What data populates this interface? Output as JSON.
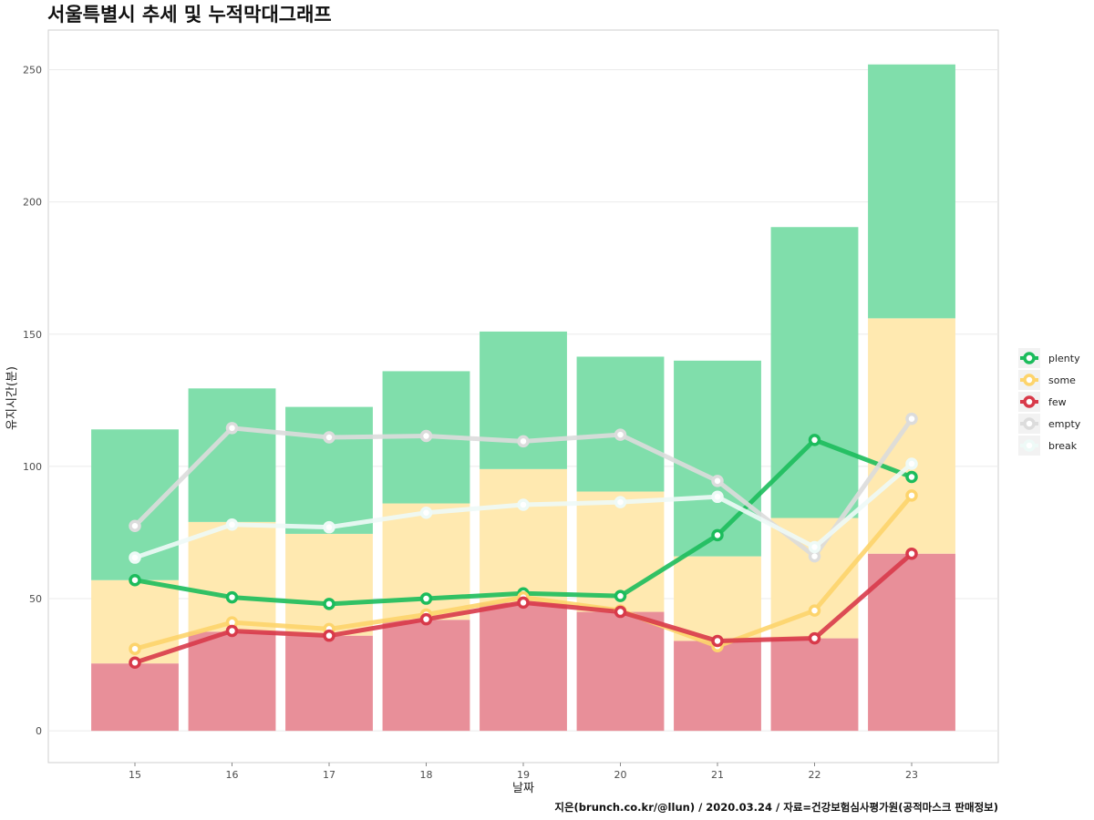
{
  "chart_data": {
    "type": "bar",
    "title": "서울특별시 추세 및 누적막대그래프",
    "xlabel": "날짜",
    "ylabel": "유지시간(분)",
    "caption": "지은(brunch.co.kr/@llun) / 2020.03.24 / 자료=건강보험심사평가원(공적마스크 판매정보)",
    "categories": [
      "15",
      "16",
      "17",
      "18",
      "19",
      "20",
      "21",
      "22",
      "23"
    ],
    "ylim": [
      -12,
      265
    ],
    "yticks": [
      0,
      50,
      100,
      150,
      200,
      250
    ],
    "grid": true,
    "legend_position": "right",
    "stack_order": [
      "few",
      "some",
      "plenty"
    ],
    "bar_series": [
      {
        "name": "few",
        "color": "#e88f99",
        "values": [
          25.5,
          37.5,
          36,
          42,
          48.5,
          45,
          34,
          35,
          67
        ]
      },
      {
        "name": "some",
        "color": "#ffe9b0",
        "values": [
          31.5,
          41.5,
          38.5,
          44,
          50.5,
          45.5,
          32,
          45.5,
          89
        ]
      },
      {
        "name": "plenty",
        "color": "#80deab",
        "values": [
          57,
          50.5,
          48,
          50,
          52,
          51,
          74,
          110,
          96
        ]
      }
    ],
    "line_series": [
      {
        "name": "plenty",
        "color": "#1cbc5c",
        "values": [
          57,
          50.5,
          48,
          50,
          52,
          51,
          74,
          110,
          96
        ]
      },
      {
        "name": "some",
        "color": "#fdd46c",
        "values": [
          31,
          41,
          38.5,
          44,
          50.5,
          45.5,
          32,
          45.5,
          89
        ]
      },
      {
        "name": "few",
        "color": "#d83a4a",
        "values": [
          25.8,
          37.8,
          36,
          42.2,
          48.5,
          45,
          34,
          35,
          67
        ]
      },
      {
        "name": "empty",
        "color": "#dcdcdc",
        "values": [
          77.5,
          114.5,
          111,
          111.5,
          109.5,
          112,
          94.5,
          66,
          118
        ]
      },
      {
        "name": "break",
        "color": "#eefaf7",
        "values": [
          65.5,
          78,
          77,
          82.5,
          85.5,
          86.5,
          88.5,
          69.5,
          101
        ]
      }
    ],
    "legend": [
      {
        "name": "plenty",
        "color": "#1cbc5c"
      },
      {
        "name": "some",
        "color": "#fdd46c"
      },
      {
        "name": "few",
        "color": "#d83a4a"
      },
      {
        "name": "empty",
        "color": "#dcdcdc"
      },
      {
        "name": "break",
        "color": "#eefaf7"
      }
    ]
  }
}
